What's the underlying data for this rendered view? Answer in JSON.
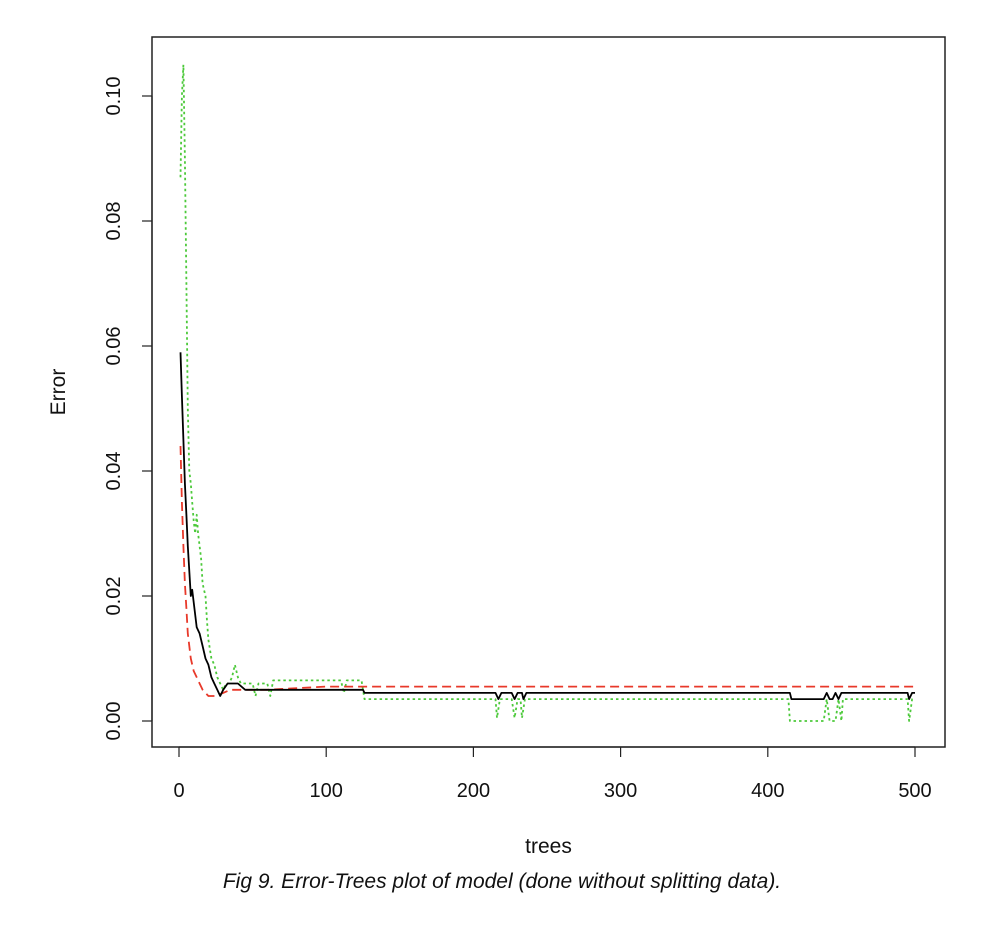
{
  "caption": "Fig 9. Error-Trees plot of model (done without splitting data).",
  "chart_data": {
    "type": "line",
    "title": "",
    "xlabel": "trees",
    "ylabel": "Error",
    "xlim": [
      0,
      500
    ],
    "ylim": [
      0,
      0.1
    ],
    "xticks": [
      0,
      100,
      200,
      300,
      400,
      500
    ],
    "xtick_labels": [
      "0",
      "100",
      "200",
      "300",
      "400",
      "500"
    ],
    "yticks": [
      0,
      0.02,
      0.04,
      0.06,
      0.08,
      0.1
    ],
    "ytick_labels": [
      "0.00",
      "0.02",
      "0.04",
      "0.06",
      "0.08",
      "0.10"
    ],
    "grid": false,
    "legend": "none",
    "series": [
      {
        "color": "#000000",
        "dash": "solid",
        "points": [
          [
            1,
            0.059
          ],
          [
            2,
            0.052
          ],
          [
            3,
            0.045
          ],
          [
            4,
            0.038
          ],
          [
            5,
            0.033
          ],
          [
            6,
            0.028
          ],
          [
            7,
            0.024
          ],
          [
            8,
            0.02
          ],
          [
            9,
            0.021
          ],
          [
            10,
            0.019
          ],
          [
            11,
            0.017
          ],
          [
            12,
            0.015
          ],
          [
            14,
            0.014
          ],
          [
            16,
            0.012
          ],
          [
            18,
            0.01
          ],
          [
            20,
            0.009
          ],
          [
            22,
            0.007
          ],
          [
            24,
            0.006
          ],
          [
            26,
            0.005
          ],
          [
            28,
            0.004
          ],
          [
            30,
            0.005
          ],
          [
            33,
            0.006
          ],
          [
            36,
            0.006
          ],
          [
            40,
            0.006
          ],
          [
            45,
            0.005
          ],
          [
            50,
            0.005
          ],
          [
            55,
            0.005
          ],
          [
            60,
            0.005
          ],
          [
            65,
            0.005
          ],
          [
            70,
            0.005
          ],
          [
            100,
            0.005
          ],
          [
            125,
            0.005
          ],
          [
            126,
            0.0045
          ],
          [
            200,
            0.0045
          ],
          [
            215,
            0.0045
          ],
          [
            217,
            0.0035
          ],
          [
            219,
            0.0045
          ],
          [
            226,
            0.0045
          ],
          [
            228,
            0.0035
          ],
          [
            230,
            0.0045
          ],
          [
            233,
            0.0045
          ],
          [
            234,
            0.0035
          ],
          [
            236,
            0.0045
          ],
          [
            300,
            0.0045
          ],
          [
            415,
            0.0045
          ],
          [
            416,
            0.0035
          ],
          [
            438,
            0.0035
          ],
          [
            440,
            0.0045
          ],
          [
            442,
            0.0035
          ],
          [
            444,
            0.0035
          ],
          [
            446,
            0.0045
          ],
          [
            448,
            0.0035
          ],
          [
            450,
            0.0045
          ],
          [
            495,
            0.0045
          ],
          [
            496,
            0.0035
          ],
          [
            498,
            0.0045
          ],
          [
            500,
            0.0045
          ]
        ]
      },
      {
        "color": "#e8392a",
        "dash": "dashed",
        "points": [
          [
            1,
            0.044
          ],
          [
            2,
            0.035
          ],
          [
            3,
            0.028
          ],
          [
            4,
            0.022
          ],
          [
            5,
            0.018
          ],
          [
            6,
            0.014
          ],
          [
            7,
            0.012
          ],
          [
            8,
            0.01
          ],
          [
            10,
            0.008
          ],
          [
            12,
            0.007
          ],
          [
            14,
            0.006
          ],
          [
            16,
            0.005
          ],
          [
            18,
            0.0045
          ],
          [
            20,
            0.004
          ],
          [
            25,
            0.004
          ],
          [
            30,
            0.0045
          ],
          [
            35,
            0.005
          ],
          [
            40,
            0.005
          ],
          [
            60,
            0.005
          ],
          [
            100,
            0.0055
          ],
          [
            200,
            0.0055
          ],
          [
            300,
            0.0055
          ],
          [
            400,
            0.0055
          ],
          [
            500,
            0.0055
          ]
        ]
      },
      {
        "color": "#4cc93a",
        "dash": "dotted",
        "points": [
          [
            1,
            0.087
          ],
          [
            2,
            0.1
          ],
          [
            3,
            0.105
          ],
          [
            4,
            0.09
          ],
          [
            5,
            0.07
          ],
          [
            6,
            0.05
          ],
          [
            7,
            0.04
          ],
          [
            8,
            0.038
          ],
          [
            9,
            0.035
          ],
          [
            10,
            0.032
          ],
          [
            11,
            0.03
          ],
          [
            12,
            0.033
          ],
          [
            13,
            0.03
          ],
          [
            14,
            0.028
          ],
          [
            15,
            0.026
          ],
          [
            16,
            0.022
          ],
          [
            17,
            0.021
          ],
          [
            18,
            0.02
          ],
          [
            19,
            0.016
          ],
          [
            20,
            0.013
          ],
          [
            22,
            0.01
          ],
          [
            24,
            0.009
          ],
          [
            26,
            0.007
          ],
          [
            28,
            0.006
          ],
          [
            30,
            0.005
          ],
          [
            32,
            0.006
          ],
          [
            34,
            0.006
          ],
          [
            36,
            0.007
          ],
          [
            38,
            0.009
          ],
          [
            40,
            0.007
          ],
          [
            42,
            0.006
          ],
          [
            50,
            0.006
          ],
          [
            52,
            0.004
          ],
          [
            54,
            0.006
          ],
          [
            60,
            0.006
          ],
          [
            62,
            0.004
          ],
          [
            64,
            0.0065
          ],
          [
            110,
            0.0065
          ],
          [
            112,
            0.0045
          ],
          [
            114,
            0.0065
          ],
          [
            124,
            0.0065
          ],
          [
            126,
            0.0035
          ],
          [
            200,
            0.0035
          ],
          [
            215,
            0.0035
          ],
          [
            216,
            0.0005
          ],
          [
            218,
            0.0035
          ],
          [
            226,
            0.0035
          ],
          [
            228,
            0.0005
          ],
          [
            230,
            0.0035
          ],
          [
            232,
            0.0035
          ],
          [
            233,
            0.0005
          ],
          [
            235,
            0.0035
          ],
          [
            300,
            0.0035
          ],
          [
            414,
            0.0035
          ],
          [
            415,
            0.0
          ],
          [
            438,
            0.0
          ],
          [
            440,
            0.0035
          ],
          [
            442,
            0.0
          ],
          [
            446,
            0.0
          ],
          [
            448,
            0.0035
          ],
          [
            450,
            0.0
          ],
          [
            451,
            0.0035
          ],
          [
            495,
            0.0035
          ],
          [
            496,
            0.0
          ],
          [
            498,
            0.0035
          ],
          [
            500,
            0.0035
          ]
        ]
      }
    ]
  }
}
